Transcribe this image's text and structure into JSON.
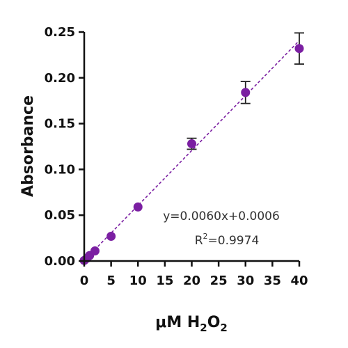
{
  "chart_data": {
    "type": "scatter",
    "x": [
      0,
      0.5,
      1,
      2,
      5,
      10,
      20,
      30,
      40
    ],
    "y": [
      0.0006,
      0.003,
      0.006,
      0.011,
      0.027,
      0.059,
      0.128,
      0.184,
      0.232
    ],
    "yerr": [
      0,
      0,
      0,
      0,
      0,
      0,
      0.006,
      0.012,
      0.017
    ],
    "ylabel": "Absorbance",
    "xlabel": {
      "prefix": "μM H",
      "sub1": "2",
      "mid": "O",
      "sub2": "2"
    },
    "xlim": [
      0,
      40
    ],
    "ylim": [
      0,
      0.25
    ],
    "xticks": [
      "0",
      "5",
      "10",
      "15",
      "20",
      "25",
      "30",
      "35",
      "40"
    ],
    "yticks": [
      "0.00",
      "0.05",
      "0.10",
      "0.15",
      "0.20",
      "0.25"
    ],
    "grid": false,
    "fit": {
      "slope": 0.006,
      "intercept": 0.0006
    },
    "annotation": {
      "equation": "y=0.0060x+0.0006",
      "r2_prefix": "R",
      "r2_sup": "2",
      "r2_value": "=0.9974"
    },
    "colors": {
      "point": "#7b1fa2",
      "fit_line": "#7b1fa2",
      "error_bar": "#222222",
      "axis": "#111111"
    }
  }
}
